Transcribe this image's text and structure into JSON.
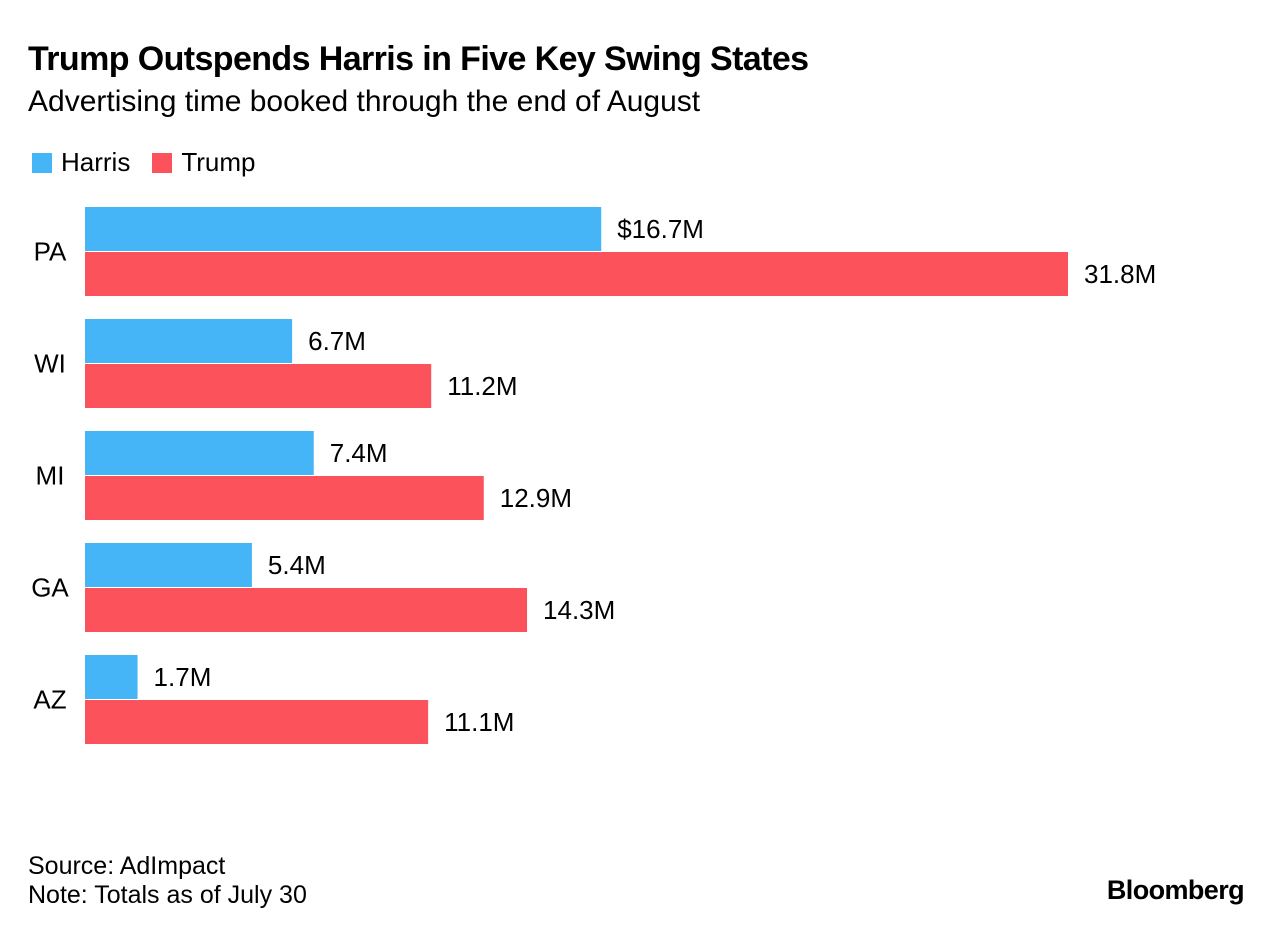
{
  "title": "Trump Outspends Harris in Five Key Swing States",
  "subtitle": "Advertising time booked through the end of August",
  "source": "Source: AdImpact",
  "note": "Note: Totals as of July 30",
  "brand": "Bloomberg",
  "colors": {
    "harris": "#45b5f8",
    "trump": "#fc525c"
  },
  "chart_data": {
    "type": "bar",
    "orientation": "horizontal",
    "title": "Trump Outspends Harris in Five Key Swing States",
    "subtitle": "Advertising time booked through the end of August",
    "xlabel": "",
    "ylabel": "",
    "xlim": [
      0,
      35
    ],
    "grid": false,
    "legend_position": "top-left",
    "categories": [
      "PA",
      "WI",
      "MI",
      "GA",
      "AZ"
    ],
    "series": [
      {
        "name": "Harris",
        "color": "#45b5f8",
        "values": [
          16.7,
          6.7,
          7.4,
          5.4,
          1.7
        ],
        "labels": [
          "$16.7M",
          "6.7M",
          "7.4M",
          "5.4M",
          "1.7M"
        ]
      },
      {
        "name": "Trump",
        "color": "#fc525c",
        "values": [
          31.8,
          11.2,
          12.9,
          14.3,
          11.1
        ],
        "labels": [
          "31.8M",
          "11.2M",
          "12.9M",
          "14.3M",
          "11.1M"
        ]
      }
    ]
  }
}
